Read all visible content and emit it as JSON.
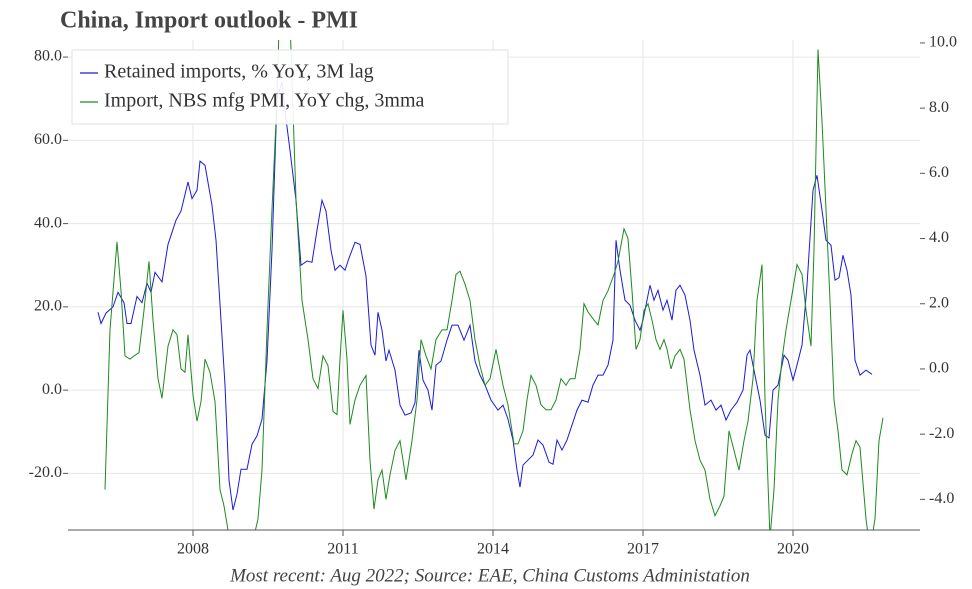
{
  "chart_data": {
    "type": "line",
    "title": "China, Import outlook - PMI",
    "footnote": "Most recent: Aug 2022; Source: EAE, China Customs Administation",
    "xlim": [
      2005.5,
      2022.54
    ],
    "xticks": [
      2008,
      2011,
      2014,
      2017,
      2020
    ],
    "ylim": [
      -33.6,
      84.1
    ],
    "yticks": [
      {
        "value": -20,
        "label": "-20.0"
      },
      {
        "value": 0,
        "label": "0.0"
      },
      {
        "value": 20,
        "label": "20.0"
      },
      {
        "value": 40,
        "label": "40.0"
      },
      {
        "value": 60,
        "label": "60.0"
      },
      {
        "value": 80,
        "label": "80.0"
      }
    ],
    "y2lim": [
      -4.94,
      10.09
    ],
    "y2ticks": [
      {
        "value": -4,
        "label": "-4.0"
      },
      {
        "value": -2,
        "label": "-2.0"
      },
      {
        "value": 0,
        "label": "0.0"
      },
      {
        "value": 2,
        "label": "2.0"
      },
      {
        "value": 4,
        "label": "4.0"
      },
      {
        "value": 6,
        "label": "6.0"
      },
      {
        "value": 8,
        "label": "8.0"
      },
      {
        "value": 10,
        "label": "10.0"
      }
    ],
    "grid": true,
    "legend": "upper left",
    "series": [
      {
        "name": "Retained imports, % YoY, 3M lag",
        "color": "#1a1adb",
        "axis": "y",
        "x": [
          2006.1,
          2006.16,
          2006.26,
          2006.4,
          2006.5,
          2006.62,
          2006.68,
          2006.76,
          2006.88,
          2006.98,
          2007.08,
          2007.16,
          2007.24,
          2007.38,
          2007.5,
          2007.66,
          2007.76,
          2007.9,
          2007.98,
          2008.08,
          2008.14,
          2008.24,
          2008.38,
          2008.46,
          2008.56,
          2008.64,
          2008.72,
          2008.8,
          2008.88,
          2008.96,
          2009.08,
          2009.18,
          2009.28,
          2009.38,
          2009.48,
          2009.58,
          2009.68,
          2009.78,
          2009.84,
          2009.94,
          2010.06,
          2010.16,
          2010.28,
          2010.38,
          2010.48,
          2010.58,
          2010.66,
          2010.76,
          2010.84,
          2010.94,
          2011.04,
          2011.12,
          2011.24,
          2011.34,
          2011.46,
          2011.56,
          2011.64,
          2011.7,
          2011.78,
          2011.86,
          2011.92,
          2012.04,
          2012.14,
          2012.24,
          2012.36,
          2012.44,
          2012.52,
          2012.6,
          2012.7,
          2012.78,
          2012.86,
          2012.96,
          2013.08,
          2013.18,
          2013.3,
          2013.42,
          2013.54,
          2013.64,
          2013.74,
          2013.84,
          2013.96,
          2014.1,
          2014.2,
          2014.3,
          2014.4,
          2014.48,
          2014.54,
          2014.6,
          2014.7,
          2014.8,
          2014.9,
          2015.0,
          2015.12,
          2015.2,
          2015.28,
          2015.38,
          2015.48,
          2015.58,
          2015.68,
          2015.78,
          2015.9,
          2016.0,
          2016.1,
          2016.2,
          2016.3,
          2016.4,
          2016.46,
          2016.54,
          2016.64,
          2016.74,
          2016.84,
          2016.94,
          2017.0,
          2017.08,
          2017.14,
          2017.22,
          2017.3,
          2017.4,
          2017.48,
          2017.58,
          2017.66,
          2017.74,
          2017.84,
          2017.94,
          2018.02,
          2018.14,
          2018.24,
          2018.36,
          2018.46,
          2018.56,
          2018.66,
          2018.76,
          2018.88,
          2019.0,
          2019.08,
          2019.14,
          2019.24,
          2019.34,
          2019.44,
          2019.52,
          2019.6,
          2019.7,
          2019.82,
          2019.9,
          2020.0,
          2020.08,
          2020.18,
          2020.28,
          2020.4,
          2020.48,
          2020.58,
          2020.66,
          2020.76,
          2020.84,
          2020.92,
          2021.0,
          2021.08,
          2021.16,
          2021.24,
          2021.34,
          2021.46,
          2021.58
        ],
        "values": [
          18.7,
          16,
          18.5,
          20,
          23.5,
          21,
          16,
          16,
          22.5,
          21,
          25.7,
          23.5,
          28.3,
          26,
          35,
          40.8,
          43,
          50,
          46,
          48,
          55,
          54,
          44.4,
          36,
          16.8,
          1.2,
          -21.6,
          -28.8,
          -25,
          -19,
          -19,
          -13,
          -11,
          -7,
          7,
          33.6,
          70,
          74,
          67,
          57.6,
          45.6,
          30,
          31,
          30.7,
          38.4,
          45.6,
          43,
          33.6,
          28.8,
          30,
          28.8,
          31.7,
          35.5,
          35,
          27.4,
          10.8,
          8.4,
          18.7,
          14.4,
          7,
          9.6,
          4.8,
          -3.6,
          -6,
          -5.5,
          -3,
          9.6,
          2.4,
          0,
          -4.8,
          6,
          7,
          12,
          15.6,
          15.6,
          12,
          15.6,
          7,
          3.6,
          1.2,
          -2.4,
          -4.8,
          -3.6,
          -7,
          -12,
          -19.2,
          -23.3,
          -18,
          -16.8,
          -15.6,
          -12,
          -13.2,
          -17.3,
          -17.8,
          -12,
          -14.4,
          -12,
          -8.4,
          -4.8,
          -2.4,
          -2.9,
          1.2,
          3.6,
          3.6,
          6,
          12,
          36,
          28.8,
          21.6,
          20.4,
          16.8,
          14.4,
          16.8,
          21.6,
          25.2,
          21.6,
          24,
          19.2,
          21.6,
          16.8,
          24,
          25.2,
          22.8,
          16.8,
          9.6,
          3.6,
          -3.6,
          -2.4,
          -4.8,
          -3.6,
          -7.2,
          -4.8,
          -2.9,
          0,
          8.4,
          9.6,
          3.6,
          -2.4,
          -10.8,
          -11.5,
          0,
          1.2,
          8.4,
          7.2,
          2.4,
          6,
          10.8,
          25.2,
          48,
          51.6,
          43.2,
          36,
          34.8,
          26.4,
          27,
          32.4,
          28.8,
          22.8,
          7.2,
          3.6,
          4.8,
          3.8
        ]
      },
      {
        "name": "Import, NBS mfg PMI, YoY chg, 3mma",
        "color": "#1e8a1e",
        "axis": "y2",
        "x": [
          2006.24,
          2006.34,
          2006.48,
          2006.56,
          2006.64,
          2006.74,
          2006.82,
          2006.92,
          2007.02,
          2007.12,
          2007.2,
          2007.3,
          2007.38,
          2007.5,
          2007.6,
          2007.68,
          2007.76,
          2007.84,
          2007.9,
          2008.0,
          2008.08,
          2008.16,
          2008.24,
          2008.34,
          2008.44,
          2008.54,
          2008.62,
          2008.76,
          2009.04,
          2009.18,
          2009.3,
          2009.38,
          2009.48,
          2009.58,
          2009.66,
          2009.72,
          2009.84,
          2009.94,
          2010.06,
          2010.18,
          2010.3,
          2010.4,
          2010.5,
          2010.6,
          2010.7,
          2010.8,
          2010.88,
          2010.94,
          2011.0,
          2011.08,
          2011.14,
          2011.24,
          2011.34,
          2011.46,
          2011.54,
          2011.62,
          2011.7,
          2011.78,
          2011.86,
          2011.94,
          2012.04,
          2012.14,
          2012.26,
          2012.38,
          2012.48,
          2012.56,
          2012.66,
          2012.76,
          2012.86,
          2012.98,
          2013.08,
          2013.18,
          2013.26,
          2013.34,
          2013.44,
          2013.54,
          2013.64,
          2013.74,
          2013.84,
          2013.94,
          2014.06,
          2014.2,
          2014.3,
          2014.42,
          2014.5,
          2014.6,
          2014.68,
          2014.76,
          2014.86,
          2014.96,
          2015.06,
          2015.16,
          2015.26,
          2015.36,
          2015.46,
          2015.54,
          2015.64,
          2015.74,
          2015.82,
          2015.9,
          2016.02,
          2016.1,
          2016.2,
          2016.3,
          2016.42,
          2016.5,
          2016.62,
          2016.7,
          2016.78,
          2016.86,
          2016.94,
          2017.02,
          2017.1,
          2017.18,
          2017.26,
          2017.34,
          2017.42,
          2017.48,
          2017.56,
          2017.64,
          2017.74,
          2017.82,
          2017.94,
          2018.04,
          2018.14,
          2018.24,
          2018.34,
          2018.44,
          2018.54,
          2018.62,
          2018.72,
          2018.82,
          2018.92,
          2019.02,
          2019.1,
          2019.2,
          2019.28,
          2019.38,
          2019.44,
          2019.54,
          2019.62,
          2019.7,
          2019.78,
          2019.86,
          2019.96,
          2020.08,
          2020.18,
          2020.26,
          2020.36,
          2020.42,
          2020.5,
          2020.58,
          2020.66,
          2020.74,
          2020.82,
          2020.9,
          2020.98,
          2021.08,
          2021.18,
          2021.26,
          2021.34,
          2021.46,
          2021.54,
          2021.64,
          2021.72,
          2021.8
        ],
        "values": [
          -3.7,
          1.2,
          3.9,
          2.4,
          0.4,
          0.3,
          0.4,
          0.5,
          1.8,
          3.3,
          1.5,
          -0.3,
          -0.9,
          0.7,
          1.2,
          1.05,
          0,
          -0.1,
          1.05,
          -0.8,
          -1.6,
          -1,
          0.3,
          -0.1,
          -1,
          -3.7,
          -4.2,
          -5.5,
          -5.2,
          -5.4,
          -4.6,
          -3.1,
          1.2,
          4.9,
          7.6,
          10.4,
          11.3,
          10.7,
          5.2,
          2.1,
          0.9,
          -0.3,
          -0.6,
          0.4,
          0.1,
          -1.3,
          -1.4,
          0.3,
          1.8,
          0.3,
          -1.7,
          -0.95,
          -0.5,
          -0.2,
          -2.8,
          -4.3,
          -3.4,
          -3.1,
          -4.0,
          -3.25,
          -2.5,
          -2.2,
          -3.4,
          -2.2,
          -0.95,
          0.9,
          0.4,
          0,
          0.9,
          1.2,
          1.2,
          2.1,
          2.9,
          3.0,
          2.6,
          2.1,
          0.9,
          0.1,
          -0.5,
          -0.3,
          0.6,
          -0.5,
          -1.1,
          -2.3,
          -2.3,
          -1.9,
          -0.95,
          -0.2,
          -0.5,
          -1.1,
          -1.25,
          -1.25,
          -0.95,
          -0.3,
          -0.5,
          -0.3,
          -0.3,
          0.6,
          2.0,
          1.75,
          1.5,
          1.35,
          2.1,
          2.4,
          2.9,
          3.3,
          4.3,
          4.0,
          2.4,
          0.6,
          0.9,
          1.8,
          2.0,
          1.5,
          0.9,
          0.6,
          0.9,
          0.6,
          0,
          0.4,
          0.6,
          0.3,
          -1.25,
          -2.2,
          -2.8,
          -3.1,
          -4.0,
          -4.5,
          -4.2,
          -3.9,
          -1.9,
          -2.5,
          -3.1,
          -2.2,
          -1.6,
          -0.3,
          2.1,
          3.2,
          -0.95,
          -5.2,
          -3.7,
          -0.95,
          0.3,
          1.2,
          2.1,
          3.2,
          2.9,
          1.8,
          0.7,
          3.65,
          9.8,
          7.6,
          4.9,
          2.1,
          -0.95,
          -1.9,
          -3.1,
          -3.25,
          -2.6,
          -2.2,
          -2.4,
          -4.6,
          -5.55,
          -4.6,
          -2.2,
          -1.5
        ]
      }
    ]
  }
}
